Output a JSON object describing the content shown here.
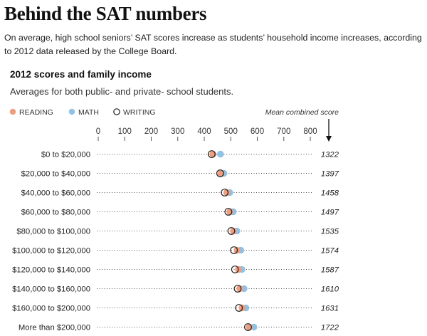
{
  "header": {
    "title": "Behind the SAT numbers",
    "dek": "On average, high school seniors’ SAT scores increase as students’ household income increases, according to 2012 data released by the College Board."
  },
  "chart_data": {
    "type": "scatter",
    "title": "2012 scores and family income",
    "subtitle": "Averages for both public- and private- school students.",
    "xlim": [
      0,
      800
    ],
    "x_ticks": [
      "0",
      "100",
      "200",
      "300",
      "400",
      "500",
      "600",
      "700",
      "800"
    ],
    "legend": {
      "placement": "top-left",
      "items": [
        "READING",
        "MATH",
        "WRITING"
      ]
    },
    "combined_header": "Mean combined score",
    "categories": [
      "$0 to $20,000",
      "$20,000 to $40,000",
      "$40,000 to $60,000",
      "$60,000 to $80,000",
      "$80,000 to $100,000",
      "$100,000 to $120,000",
      "$120,000 to $140,000",
      "$140,000 to $160,000",
      "$160,000 to $200,000",
      "More than $200,000"
    ],
    "series": [
      {
        "name": "READING",
        "color": "#ef9d7f",
        "values": [
          433,
          463,
          485,
          497,
          510,
          524,
          529,
          534,
          543,
          570
        ]
      },
      {
        "name": "MATH",
        "color": "#8fc2e6",
        "values": [
          461,
          474,
          496,
          509,
          523,
          538,
          542,
          550,
          557,
          587
        ]
      },
      {
        "name": "WRITING",
        "color": "#222222",
        "values": [
          428,
          460,
          477,
          491,
          502,
          512,
          516,
          526,
          531,
          565
        ]
      }
    ],
    "combined": [
      "1322",
      "1397",
      "1458",
      "1497",
      "1535",
      "1574",
      "1587",
      "1610",
      "1631",
      "1722"
    ]
  }
}
